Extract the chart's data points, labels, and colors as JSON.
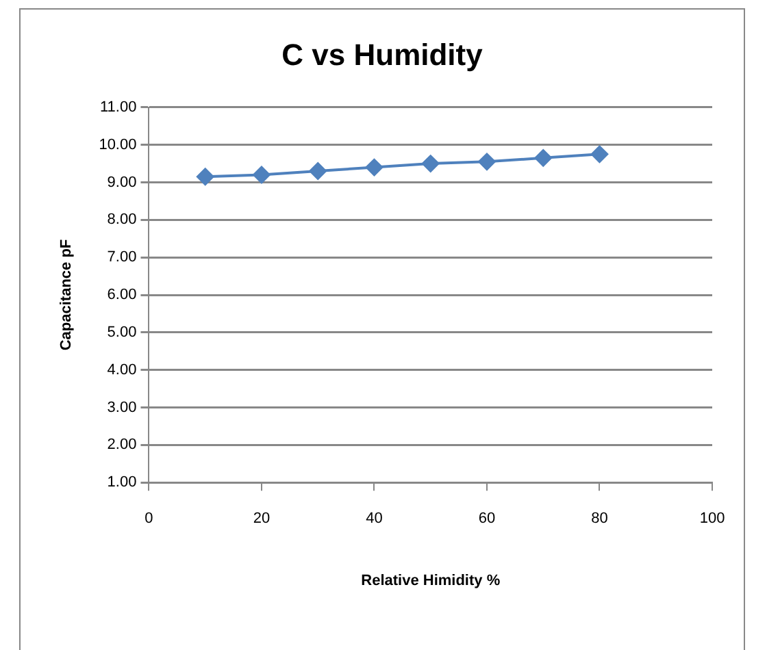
{
  "chart_data": {
    "type": "line",
    "title": "C vs Humidity",
    "xlabel": "Relative Himidity %",
    "ylabel": "Capacitance pF",
    "x": [
      10,
      20,
      30,
      40,
      50,
      60,
      70,
      80
    ],
    "series": [
      {
        "color": "#4f81bd",
        "values": [
          9.15,
          9.2,
          9.3,
          9.4,
          9.5,
          9.55,
          9.65,
          9.75
        ]
      }
    ],
    "xlim": [
      0,
      100
    ],
    "xticks": [
      0,
      20,
      40,
      60,
      80,
      100
    ],
    "ylim": [
      1,
      11
    ],
    "yticks": [
      {
        "value": 1,
        "label": "1.00"
      },
      {
        "value": 2,
        "label": "2.00"
      },
      {
        "value": 3,
        "label": "3.00"
      },
      {
        "value": 4,
        "label": "4.00"
      },
      {
        "value": 5,
        "label": "5.00"
      },
      {
        "value": 6,
        "label": "6.00"
      },
      {
        "value": 7,
        "label": "7.00"
      },
      {
        "value": 8,
        "label": "8.00"
      },
      {
        "value": 9,
        "label": "9.00"
      },
      {
        "value": 10,
        "label": "10.00"
      },
      {
        "value": 11,
        "label": "11.00"
      }
    ],
    "grid": "y",
    "marker": "diamond",
    "line_style": "solid"
  }
}
